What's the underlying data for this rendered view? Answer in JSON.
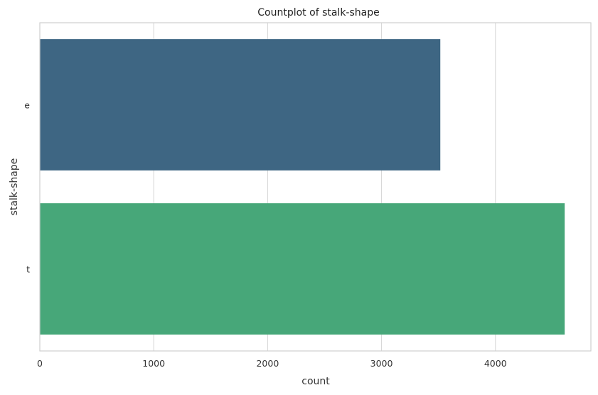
{
  "chart_data": {
    "type": "bar",
    "orientation": "horizontal",
    "title": "Countplot of stalk-shape",
    "xlabel": "count",
    "ylabel": "stalk-shape",
    "categories": [
      "e",
      "t"
    ],
    "values": [
      3516,
      4608
    ],
    "xlim": [
      0,
      4838
    ],
    "xticks": [
      0,
      1000,
      2000,
      3000,
      4000
    ],
    "grid": true,
    "colors": [
      "#3e6683",
      "#47a779"
    ]
  }
}
